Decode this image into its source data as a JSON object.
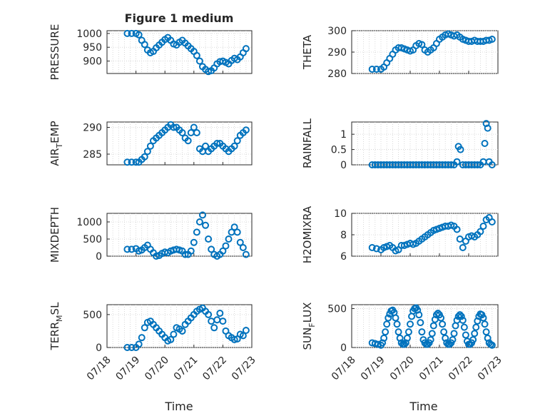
{
  "figure": {
    "title": "Figure 1 medium",
    "xlabel": "Time",
    "marker_color": "#0072BD",
    "grid": true
  },
  "chart_data": [
    {
      "type": "scatter",
      "id": "pressure",
      "ylabel": "PRESSURE",
      "ylim": [
        855,
        1010
      ],
      "yticks": [
        1000,
        950,
        900
      ],
      "xlim": [
        0,
        5
      ],
      "xticks": [
        0,
        1,
        2,
        3,
        4,
        5
      ],
      "xticklabels": [
        "07/18",
        "07/19",
        "07/20",
        "07/21",
        "07/22",
        "07/23"
      ],
      "x": [
        0.7,
        0.85,
        1.0,
        1.1,
        1.2,
        1.3,
        1.4,
        1.5,
        1.6,
        1.7,
        1.8,
        1.9,
        2.0,
        2.1,
        2.2,
        2.3,
        2.4,
        2.5,
        2.6,
        2.7,
        2.8,
        2.9,
        3.0,
        3.1,
        3.2,
        3.3,
        3.4,
        3.5,
        3.6,
        3.7,
        3.8,
        3.9,
        4.0,
        4.1,
        4.2,
        4.3,
        4.4,
        4.5,
        4.6,
        4.7,
        4.8
      ],
      "y": [
        1000,
        1000,
        1000,
        995,
        975,
        960,
        940,
        930,
        935,
        948,
        958,
        968,
        978,
        985,
        975,
        962,
        958,
        968,
        975,
        965,
        955,
        945,
        935,
        920,
        900,
        880,
        870,
        862,
        865,
        875,
        890,
        898,
        900,
        895,
        890,
        902,
        910,
        905,
        915,
        930,
        945
      ]
    },
    {
      "type": "scatter",
      "id": "theta",
      "ylabel": "THETA",
      "ylim": [
        280,
        300
      ],
      "yticks": [
        300,
        290,
        280
      ],
      "xlim": [
        0,
        5
      ],
      "xticks": [
        0,
        1,
        2,
        3,
        4,
        5
      ],
      "xticklabels": [
        "07/18",
        "07/19",
        "07/20",
        "07/21",
        "07/22",
        "07/23"
      ],
      "x": [
        0.7,
        0.85,
        1.0,
        1.1,
        1.2,
        1.3,
        1.4,
        1.5,
        1.6,
        1.7,
        1.8,
        1.9,
        2.0,
        2.1,
        2.2,
        2.3,
        2.4,
        2.5,
        2.6,
        2.7,
        2.8,
        2.9,
        3.0,
        3.1,
        3.2,
        3.3,
        3.4,
        3.5,
        3.6,
        3.7,
        3.8,
        3.9,
        4.0,
        4.1,
        4.2,
        4.3,
        4.4,
        4.5,
        4.6,
        4.7,
        4.8
      ],
      "y": [
        282,
        282,
        282,
        283,
        285,
        287,
        289,
        291,
        292,
        292,
        291.5,
        291,
        290.5,
        291,
        293,
        294,
        293.5,
        291,
        290,
        291,
        292,
        294,
        296,
        297,
        298,
        298.5,
        298,
        297.5,
        298,
        297,
        296,
        295.5,
        295,
        295,
        295.5,
        295,
        295,
        295,
        295.5,
        295.5,
        296
      ]
    },
    {
      "type": "scatter",
      "id": "air_temp",
      "ylabel": "AIR",
      "ylabel_sub": "T",
      "ylabel_rest": "EMP",
      "ylim": [
        283,
        291
      ],
      "yticks": [
        290,
        285
      ],
      "xlim": [
        0,
        5
      ],
      "xticks": [
        0,
        1,
        2,
        3,
        4,
        5
      ],
      "xticklabels": [
        "07/18",
        "07/19",
        "07/20",
        "07/21",
        "07/22",
        "07/23"
      ],
      "x": [
        0.7,
        0.85,
        1.0,
        1.1,
        1.2,
        1.3,
        1.4,
        1.5,
        1.6,
        1.7,
        1.8,
        1.9,
        2.0,
        2.1,
        2.2,
        2.3,
        2.4,
        2.5,
        2.6,
        2.7,
        2.8,
        2.9,
        3.0,
        3.1,
        3.2,
        3.3,
        3.4,
        3.5,
        3.6,
        3.7,
        3.8,
        3.9,
        4.0,
        4.1,
        4.2,
        4.3,
        4.4,
        4.5,
        4.6,
        4.7,
        4.8
      ],
      "y": [
        283.5,
        283.5,
        283.5,
        283.5,
        284,
        284.5,
        285.5,
        286.5,
        287.5,
        288,
        288.5,
        289,
        289.5,
        290,
        290.5,
        290,
        290,
        289.5,
        289,
        288,
        287.5,
        289,
        290,
        289,
        286,
        285.5,
        286.5,
        285.5,
        286,
        286.5,
        287,
        287,
        286.5,
        286,
        285.5,
        286,
        286.5,
        287.5,
        288.5,
        289,
        289.5
      ]
    },
    {
      "type": "scatter",
      "id": "rainfall",
      "ylabel": "RAINFALL",
      "ylim": [
        0,
        1.4
      ],
      "yticks": [
        1,
        0.5,
        0
      ],
      "yticklabels": [
        "1",
        "0.5",
        "0"
      ],
      "xlim": [
        0,
        5
      ],
      "xticks": [
        0,
        1,
        2,
        3,
        4,
        5
      ],
      "xticklabels": [
        "07/18",
        "07/19",
        "07/20",
        "07/21",
        "07/22",
        "07/23"
      ],
      "x": [
        0.7,
        0.8,
        0.9,
        1.0,
        1.1,
        1.2,
        1.3,
        1.4,
        1.5,
        1.6,
        1.7,
        1.8,
        1.9,
        2.0,
        2.1,
        2.2,
        2.3,
        2.4,
        2.5,
        2.6,
        2.7,
        2.8,
        2.9,
        3.0,
        3.1,
        3.2,
        3.3,
        3.4,
        3.5,
        3.6,
        3.65,
        3.72,
        3.8,
        3.9,
        4.0,
        4.1,
        4.2,
        4.3,
        4.4,
        4.5,
        4.55,
        4.6,
        4.65,
        4.7,
        4.8
      ],
      "y": [
        0,
        0,
        0,
        0,
        0,
        0,
        0,
        0,
        0,
        0,
        0,
        0,
        0,
        0,
        0,
        0,
        0,
        0,
        0,
        0,
        0,
        0,
        0,
        0,
        0,
        0,
        0,
        0,
        0,
        0.1,
        0.6,
        0.5,
        0,
        0,
        0,
        0,
        0,
        0,
        0,
        0.1,
        0.7,
        1.35,
        1.2,
        0.1,
        0
      ]
    },
    {
      "type": "scatter",
      "id": "mixdepth",
      "ylabel": "MIXDEPTH",
      "ylim": [
        0,
        1250
      ],
      "yticks": [
        1000,
        500,
        0
      ],
      "xlim": [
        0,
        5
      ],
      "xticks": [
        0,
        1,
        2,
        3,
        4,
        5
      ],
      "xticklabels": [
        "07/18",
        "07/19",
        "07/20",
        "07/21",
        "07/22",
        "07/23"
      ],
      "x": [
        0.7,
        0.85,
        1.0,
        1.1,
        1.2,
        1.3,
        1.4,
        1.5,
        1.6,
        1.7,
        1.8,
        1.9,
        2.0,
        2.1,
        2.2,
        2.3,
        2.4,
        2.5,
        2.6,
        2.7,
        2.8,
        2.9,
        3.0,
        3.1,
        3.2,
        3.3,
        3.4,
        3.5,
        3.6,
        3.7,
        3.8,
        3.9,
        4.0,
        4.1,
        4.2,
        4.3,
        4.4,
        4.5,
        4.6,
        4.7,
        4.8
      ],
      "y": [
        200,
        200,
        220,
        150,
        180,
        250,
        320,
        200,
        100,
        0,
        20,
        80,
        120,
        100,
        150,
        180,
        200,
        180,
        150,
        50,
        50,
        150,
        400,
        700,
        1000,
        1200,
        900,
        500,
        200,
        50,
        0,
        50,
        150,
        300,
        500,
        700,
        850,
        700,
        400,
        250,
        50
      ]
    },
    {
      "type": "scatter",
      "id": "h2omixra",
      "ylabel": "H2OMIXRA",
      "ylim": [
        6,
        10
      ],
      "yticks": [
        10,
        8,
        6
      ],
      "xlim": [
        0,
        5
      ],
      "xticks": [
        0,
        1,
        2,
        3,
        4,
        5
      ],
      "xticklabels": [
        "07/18",
        "07/19",
        "07/20",
        "07/21",
        "07/22",
        "07/23"
      ],
      "x": [
        0.7,
        0.85,
        1.0,
        1.1,
        1.2,
        1.3,
        1.4,
        1.5,
        1.6,
        1.7,
        1.8,
        1.9,
        2.0,
        2.1,
        2.2,
        2.3,
        2.4,
        2.5,
        2.6,
        2.7,
        2.8,
        2.9,
        3.0,
        3.1,
        3.2,
        3.3,
        3.4,
        3.5,
        3.6,
        3.7,
        3.8,
        3.9,
        4.0,
        4.1,
        4.2,
        4.3,
        4.4,
        4.5,
        4.6,
        4.7,
        4.8
      ],
      "y": [
        6.8,
        6.7,
        6.6,
        6.8,
        6.9,
        7.0,
        6.8,
        6.5,
        6.6,
        7.0,
        7.0,
        7.1,
        7.2,
        7.1,
        7.2,
        7.4,
        7.6,
        7.8,
        8.0,
        8.2,
        8.4,
        8.5,
        8.6,
        8.7,
        8.8,
        8.8,
        8.9,
        8.8,
        8.5,
        7.6,
        6.8,
        7.4,
        7.8,
        7.9,
        7.8,
        8.0,
        8.3,
        8.8,
        9.4,
        9.6,
        9.2
      ]
    },
    {
      "type": "scatter",
      "id": "terr_msl",
      "ylabel": "TERR",
      "ylabel_sub": "M",
      "ylabel_rest": "SL",
      "ylim": [
        0,
        650
      ],
      "yticks": [
        500,
        0
      ],
      "xlim": [
        0,
        5
      ],
      "xticks": [
        0,
        1,
        2,
        3,
        4,
        5
      ],
      "xticklabels": [
        "07/18",
        "07/19",
        "07/20",
        "07/21",
        "07/22",
        "07/23"
      ],
      "x": [
        0.7,
        0.85,
        1.0,
        1.1,
        1.2,
        1.3,
        1.4,
        1.5,
        1.6,
        1.7,
        1.8,
        1.9,
        2.0,
        2.1,
        2.2,
        2.3,
        2.4,
        2.5,
        2.6,
        2.7,
        2.8,
        2.9,
        3.0,
        3.1,
        3.2,
        3.3,
        3.4,
        3.5,
        3.6,
        3.7,
        3.8,
        3.9,
        4.0,
        4.1,
        4.2,
        4.3,
        4.4,
        4.5,
        4.6,
        4.7,
        4.8
      ],
      "y": [
        0,
        0,
        0,
        50,
        150,
        300,
        380,
        400,
        350,
        300,
        250,
        200,
        150,
        100,
        120,
        200,
        300,
        280,
        250,
        350,
        400,
        450,
        500,
        550,
        580,
        600,
        550,
        500,
        400,
        300,
        420,
        520,
        400,
        250,
        180,
        150,
        120,
        130,
        200,
        180,
        260
      ]
    },
    {
      "type": "scatter",
      "id": "sun_flux",
      "ylabel": "SUN",
      "ylabel_sub": "F",
      "ylabel_rest": "LUX",
      "ylim": [
        0,
        550
      ],
      "yticks": [
        500,
        0
      ],
      "xlim": [
        0,
        5
      ],
      "xticks": [
        0,
        1,
        2,
        3,
        4,
        5
      ],
      "xticklabels": [
        "07/18",
        "07/19",
        "07/20",
        "07/21",
        "07/22",
        "07/23"
      ],
      "x": [
        0.7,
        0.8,
        0.9,
        1.0,
        1.05,
        1.1,
        1.15,
        1.2,
        1.25,
        1.3,
        1.35,
        1.4,
        1.45,
        1.5,
        1.55,
        1.6,
        1.65,
        1.7,
        1.75,
        1.8,
        1.85,
        1.9,
        1.95,
        2.0,
        2.05,
        2.1,
        2.15,
        2.2,
        2.25,
        2.3,
        2.35,
        2.4,
        2.45,
        2.5,
        2.55,
        2.6,
        2.65,
        2.7,
        2.75,
        2.8,
        2.85,
        2.9,
        2.95,
        3.0,
        3.05,
        3.1,
        3.15,
        3.2,
        3.25,
        3.3,
        3.35,
        3.4,
        3.45,
        3.5,
        3.55,
        3.6,
        3.65,
        3.7,
        3.75,
        3.8,
        3.85,
        3.9,
        3.95,
        4.0,
        4.05,
        4.1,
        4.15,
        4.2,
        4.25,
        4.3,
        4.35,
        4.4,
        4.45,
        4.5,
        4.55,
        4.6,
        4.65,
        4.7,
        4.75,
        4.8
      ],
      "y": [
        60,
        50,
        40,
        30,
        60,
        120,
        200,
        300,
        380,
        430,
        470,
        480,
        450,
        380,
        300,
        200,
        120,
        60,
        40,
        40,
        60,
        120,
        200,
        300,
        400,
        470,
        500,
        510,
        480,
        420,
        320,
        200,
        100,
        60,
        40,
        40,
        60,
        100,
        180,
        280,
        360,
        420,
        440,
        420,
        380,
        300,
        200,
        120,
        60,
        40,
        40,
        60,
        100,
        180,
        280,
        350,
        400,
        420,
        400,
        350,
        260,
        160,
        80,
        40,
        40,
        60,
        100,
        180,
        260,
        340,
        400,
        430,
        420,
        380,
        300,
        200,
        120,
        60,
        40,
        30
      ]
    }
  ]
}
